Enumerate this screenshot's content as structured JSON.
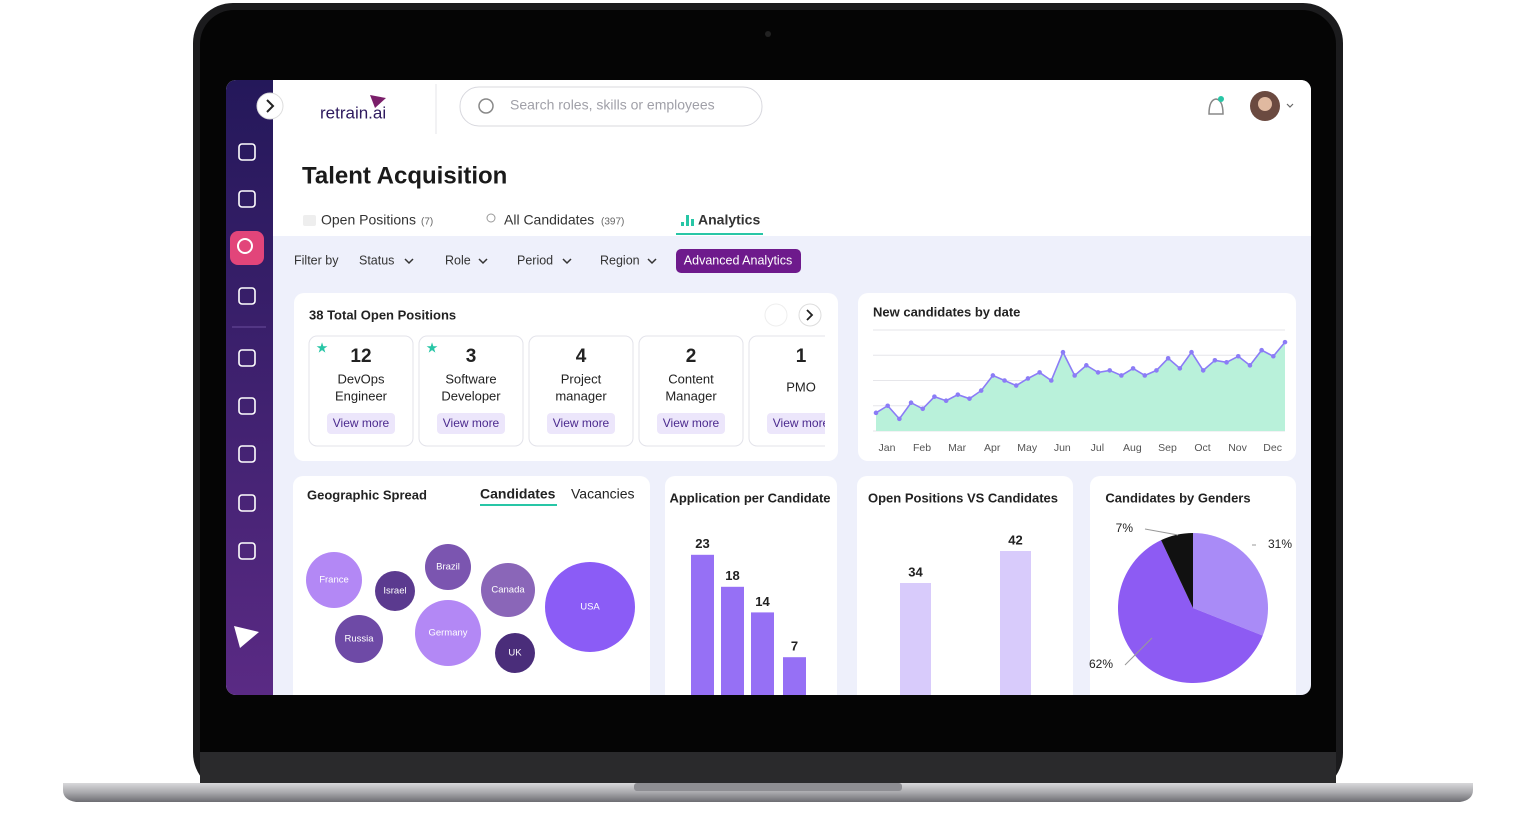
{
  "app": {
    "logo": "retrain.ai",
    "search_placeholder": "Search roles, skills or employees"
  },
  "page": {
    "title": "Talent Acquisition",
    "tabs": [
      {
        "label": "Open Positions",
        "count": "(7)"
      },
      {
        "label": "All Candidates",
        "count": "(397)"
      },
      {
        "label": "Analytics",
        "active": true
      }
    ],
    "filter_label": "Filter by",
    "filters": [
      "Status",
      "Role",
      "Period",
      "Region"
    ],
    "advanced_button": "Advanced Analytics"
  },
  "positions": {
    "title": "38 Total Open Positions",
    "action": "View more",
    "items": [
      {
        "count": 12,
        "title": [
          "DevOps",
          "Engineer"
        ],
        "starred": true
      },
      {
        "count": 3,
        "title": [
          "Software",
          "Developer"
        ],
        "starred": true
      },
      {
        "count": 4,
        "title": [
          "Project",
          "manager"
        ],
        "starred": false
      },
      {
        "count": 2,
        "title": [
          "Content",
          "Manager"
        ],
        "starred": false
      },
      {
        "count": 1,
        "title": [
          "PMO"
        ],
        "starred": false
      }
    ]
  },
  "chart_data": [
    {
      "type": "line",
      "title": "New candidates by date",
      "categories": [
        "Jan",
        null,
        null,
        "Feb",
        null,
        null,
        "Mar",
        null,
        null,
        "Apr",
        null,
        null,
        "May",
        null,
        null,
        "Jun",
        null,
        null,
        "Jul",
        null,
        null,
        "Aug",
        null,
        null,
        "Sep",
        null,
        null,
        "Oct",
        null,
        null,
        "Nov",
        null,
        null,
        "Dec",
        null,
        null
      ],
      "values": [
        18,
        25,
        12,
        28,
        22,
        34,
        30,
        36,
        32,
        40,
        55,
        50,
        45,
        52,
        58,
        50,
        78,
        55,
        65,
        58,
        60,
        55,
        62,
        55,
        60,
        72,
        62,
        78,
        60,
        70,
        68,
        74,
        65,
        80,
        74,
        88
      ],
      "ylim": [
        0,
        100
      ],
      "color": "#8b7cf6",
      "area_color": "#b9f1da",
      "grid": true
    },
    {
      "type": "bubble",
      "title": "Geographic Spread",
      "tabs": [
        "Candidates",
        "Vacancies"
      ],
      "categories": [
        "France",
        "Israel",
        "Brazil",
        "Canada",
        "USA",
        "Russia",
        "Germany",
        "UK"
      ],
      "values": [
        28,
        20,
        23,
        27,
        45,
        24,
        33,
        20
      ],
      "colors": [
        "#b388f5",
        "#5b3a8f",
        "#7b55b0",
        "#8a66b8",
        "#8b5cf6",
        "#6e4aa6",
        "#b388f5",
        "#4a2d7a"
      ]
    },
    {
      "type": "bar",
      "title": "Application per Candidate",
      "values": [
        23,
        18,
        14,
        7
      ],
      "ylim": [
        0,
        25
      ],
      "color": "#9670f5"
    },
    {
      "type": "bar",
      "title": "Open Positions VS Candidates",
      "values": [
        34,
        42
      ],
      "ylim": [
        0,
        50
      ],
      "color": "#d8cbfb"
    },
    {
      "type": "pie",
      "title": "Candidates by Genders",
      "values": [
        31,
        62,
        7
      ],
      "value_labels": [
        "31%",
        "62%",
        "7%"
      ],
      "colors": [
        "#a98bf7",
        "#8d5bf3",
        "#111111"
      ]
    }
  ]
}
